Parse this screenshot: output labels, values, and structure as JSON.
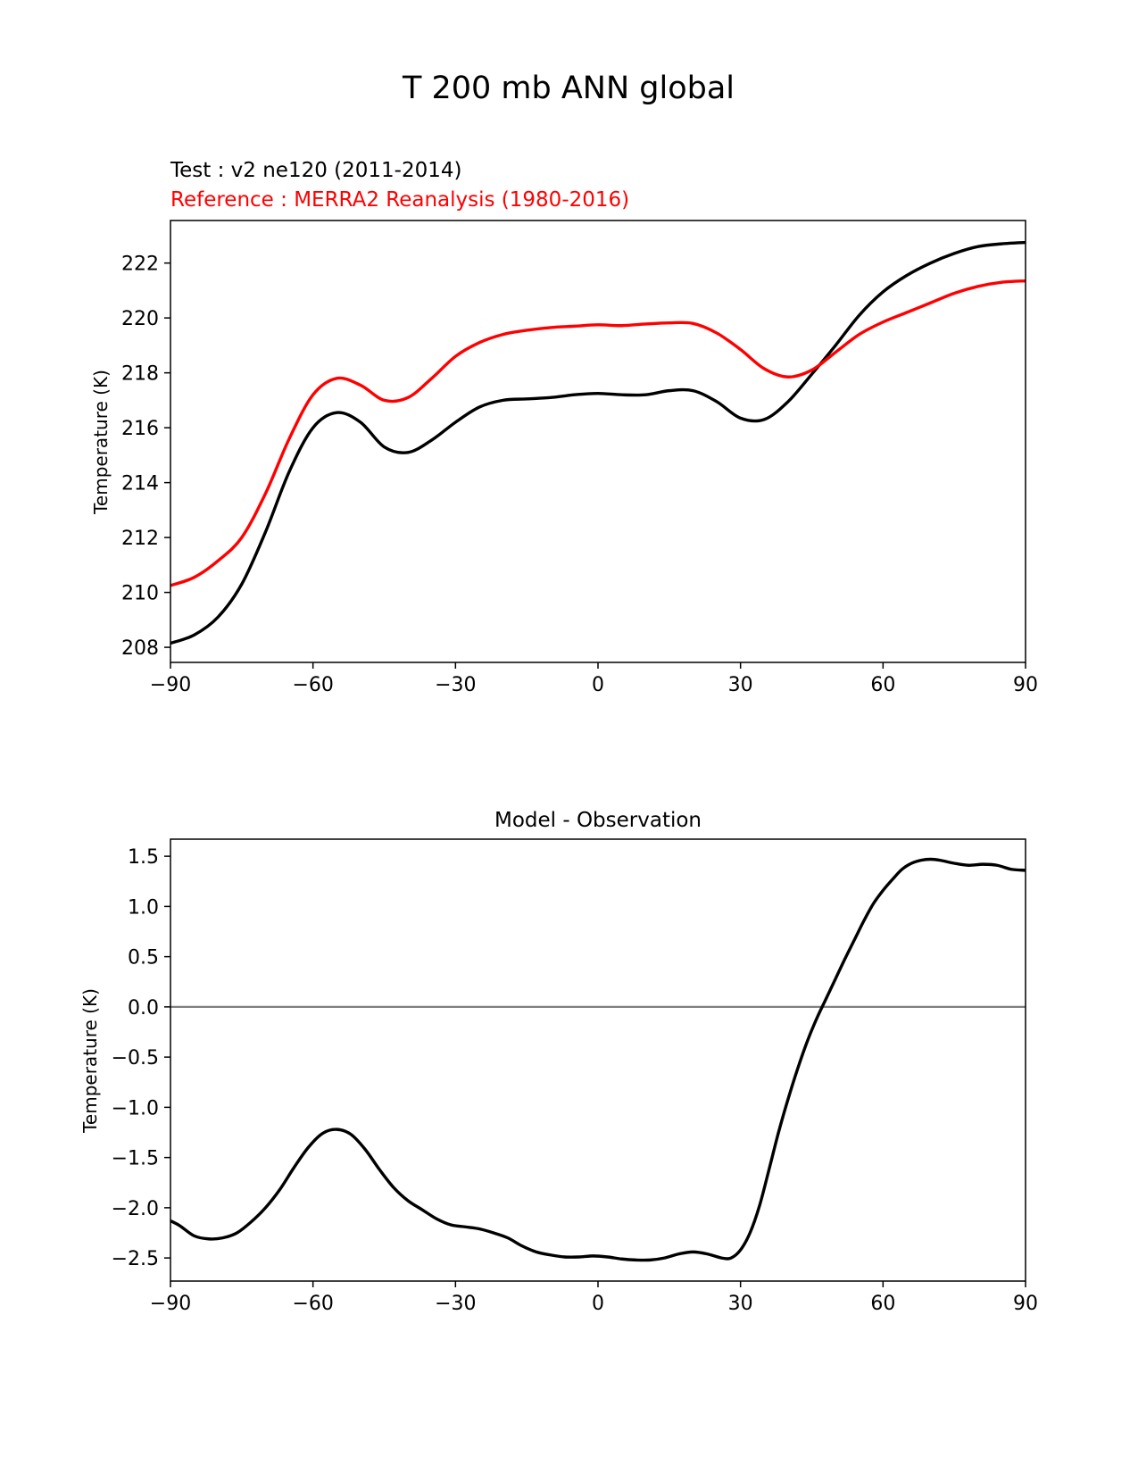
{
  "figure_title": "T 200 mb ANN global",
  "colors": {
    "test": "#000000",
    "reference": "#ff0000",
    "zero_line": "#808080",
    "axes": "#000000"
  },
  "chart_data": [
    {
      "type": "line",
      "title_test": "Test : v2 ne120 (2011-2014)",
      "title_reference": "Reference : MERRA2 Reanalysis (1980-2016)",
      "xlabel": "",
      "ylabel": "Temperature (K)",
      "xlim": [
        -90,
        90
      ],
      "ylim": [
        207.45,
        223.55
      ],
      "xticks": [
        -90,
        -60,
        -30,
        0,
        30,
        60,
        90
      ],
      "xtick_labels": [
        "−90",
        "−60",
        "−30",
        "0",
        "30",
        "60",
        "90"
      ],
      "yticks": [
        208,
        210,
        212,
        214,
        216,
        218,
        220,
        222
      ],
      "ytick_labels": [
        "208",
        "210",
        "212",
        "214",
        "216",
        "218",
        "220",
        "222"
      ],
      "x": [
        -90,
        -85,
        -80,
        -75,
        -70,
        -65,
        -60,
        -55,
        -50,
        -45,
        -40,
        -35,
        -30,
        -25,
        -20,
        -15,
        -10,
        -5,
        0,
        5,
        10,
        15,
        20,
        25,
        30,
        35,
        40,
        45,
        50,
        55,
        60,
        65,
        70,
        75,
        80,
        85,
        90
      ],
      "series": [
        {
          "name": "Test : v2 ne120 (2011-2014)",
          "color": "#000000",
          "values": [
            208.15,
            208.45,
            209.1,
            210.3,
            212.2,
            214.4,
            216.0,
            216.55,
            216.2,
            215.3,
            215.1,
            215.55,
            216.2,
            216.75,
            217.0,
            217.05,
            217.1,
            217.2,
            217.25,
            217.2,
            217.2,
            217.35,
            217.35,
            216.95,
            216.35,
            216.3,
            216.95,
            217.95,
            219.0,
            220.1,
            220.95,
            221.55,
            222.0,
            222.35,
            222.6,
            222.7,
            222.75
          ]
        },
        {
          "name": "Reference : MERRA2 Reanalysis (1980-2016)",
          "color": "#ff0000",
          "values": [
            210.25,
            210.55,
            211.15,
            212.0,
            213.6,
            215.6,
            217.2,
            217.8,
            217.55,
            217.0,
            217.1,
            217.8,
            218.6,
            219.1,
            219.4,
            219.55,
            219.65,
            219.7,
            219.75,
            219.72,
            219.78,
            219.82,
            219.8,
            219.45,
            218.85,
            218.15,
            217.85,
            218.1,
            218.75,
            219.4,
            219.85,
            220.2,
            220.55,
            220.9,
            221.15,
            221.3,
            221.35
          ]
        }
      ]
    },
    {
      "type": "line",
      "title": "Model - Observation",
      "xlabel": "",
      "ylabel": "Temperature (K)",
      "xlim": [
        -90,
        90
      ],
      "ylim": [
        -2.73,
        1.67
      ],
      "xticks": [
        -90,
        -60,
        -30,
        0,
        30,
        60,
        90
      ],
      "xtick_labels": [
        "−90",
        "−60",
        "−30",
        "0",
        "30",
        "60",
        "90"
      ],
      "yticks": [
        -2.5,
        -2.0,
        -1.5,
        -1.0,
        -0.5,
        0.0,
        0.5,
        1.0,
        1.5
      ],
      "ytick_labels": [
        "−2.5",
        "−2.0",
        "−1.5",
        "−1.0",
        "−0.5",
        "0.0",
        "0.5",
        "1.0",
        "1.5"
      ],
      "reference_line": 0.0,
      "x": [
        -90,
        -88,
        -85,
        -82,
        -79,
        -76,
        -73,
        -70,
        -67,
        -64,
        -61,
        -58,
        -55,
        -52,
        -49,
        -46,
        -43,
        -40,
        -37,
        -34,
        -31,
        -28,
        -25,
        -22,
        -19,
        -16,
        -13,
        -10,
        -7,
        -4,
        -1,
        2,
        5,
        8,
        11,
        14,
        17,
        20,
        23,
        26,
        28,
        30,
        32,
        34,
        36,
        38,
        40,
        42,
        44,
        46,
        48,
        50,
        52,
        54,
        56,
        58,
        60,
        62,
        64,
        66,
        68,
        70,
        72,
        75,
        78,
        81,
        84,
        87,
        90
      ],
      "series": [
        {
          "name": "Model - Observation",
          "color": "#000000",
          "values": [
            -2.13,
            -2.18,
            -2.28,
            -2.31,
            -2.3,
            -2.25,
            -2.14,
            -2.0,
            -1.82,
            -1.6,
            -1.4,
            -1.26,
            -1.22,
            -1.27,
            -1.42,
            -1.62,
            -1.8,
            -1.93,
            -2.02,
            -2.11,
            -2.17,
            -2.19,
            -2.21,
            -2.25,
            -2.3,
            -2.38,
            -2.44,
            -2.47,
            -2.49,
            -2.49,
            -2.48,
            -2.49,
            -2.51,
            -2.52,
            -2.52,
            -2.5,
            -2.46,
            -2.44,
            -2.46,
            -2.5,
            -2.5,
            -2.42,
            -2.25,
            -1.98,
            -1.62,
            -1.25,
            -0.92,
            -0.62,
            -0.35,
            -0.12,
            0.08,
            0.28,
            0.48,
            0.67,
            0.86,
            1.03,
            1.16,
            1.27,
            1.37,
            1.43,
            1.46,
            1.47,
            1.46,
            1.43,
            1.41,
            1.42,
            1.41,
            1.37,
            1.36
          ]
        }
      ]
    }
  ]
}
